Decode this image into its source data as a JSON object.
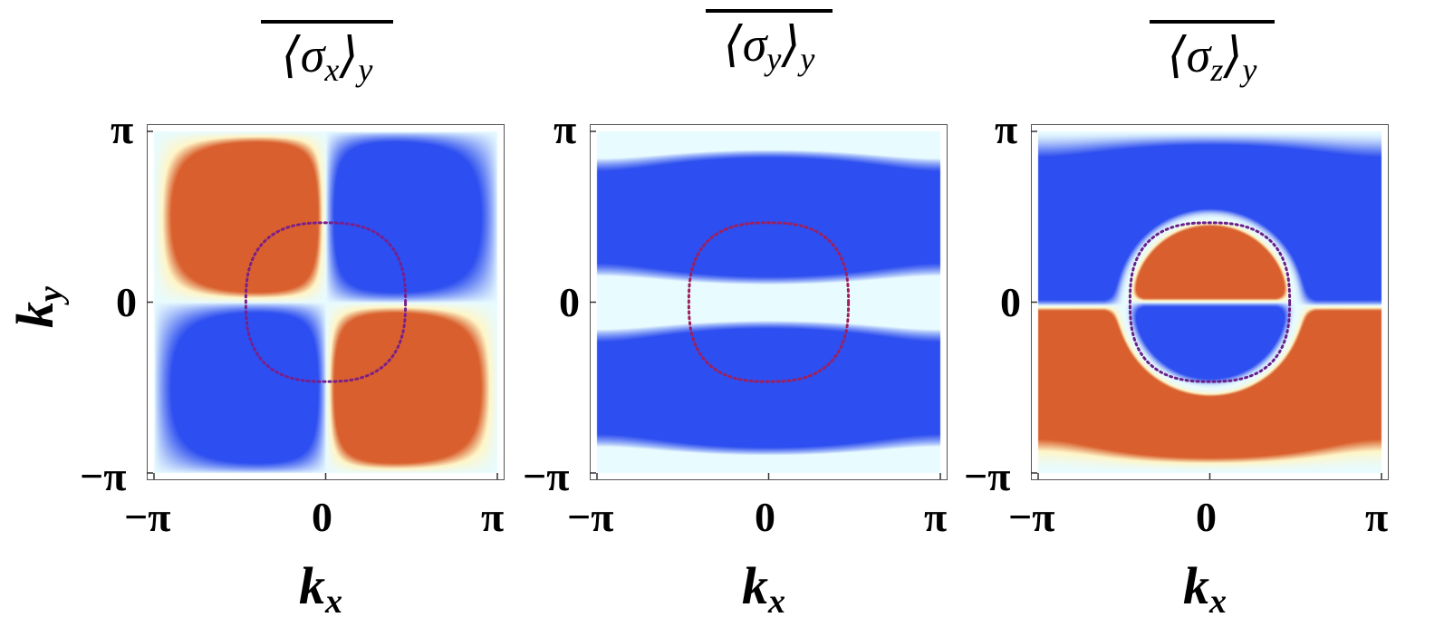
{
  "chart_data": [
    {
      "type": "heatmap",
      "title": "⟨σ_x⟩_y",
      "title_main": "⟨σ",
      "title_inner_sub": "x",
      "title_close": "⟩",
      "title_outer_sub": "y",
      "xlabel": "k_x",
      "ylabel": "k_y",
      "x_range": [
        -3.1416,
        3.1416
      ],
      "y_range": [
        -3.1416,
        3.1416
      ],
      "x_ticks": [
        "−π",
        "0",
        "π"
      ],
      "y_ticks": [
        "π",
        "0",
        "−π"
      ],
      "colormap": [
        "#2d4ef0",
        "#e8fbff",
        "#fff6c8",
        "#d9602e"
      ],
      "pattern": "quadrant (sin kx · sin ky), red in 2nd/4th quadrants, blue in 1st/3rd",
      "fermi_contour": {
        "style": "dotted",
        "color": "#7a1f8a",
        "radius_fraction_of_pi": 0.5
      }
    },
    {
      "type": "heatmap",
      "title": "⟨σ_y⟩_y",
      "title_main": "⟨σ",
      "title_inner_sub": "y",
      "title_close": "⟩",
      "title_outer_sub": "y",
      "xlabel": "k_x",
      "ylabel": "",
      "x_range": [
        -3.1416,
        3.1416
      ],
      "y_range": [
        -3.1416,
        3.1416
      ],
      "x_ticks": [
        "−π",
        "0",
        "π"
      ],
      "y_ticks": [
        "π",
        "0",
        "−π"
      ],
      "colormap": [
        "#2d4ef0",
        "#e8fbff",
        "#fff6c8",
        "#d9602e"
      ],
      "pattern": "blue bands above and below ky = 0, pale stripe at ky = 0",
      "fermi_contour": {
        "style": "dotted",
        "color": "#a01f5a",
        "radius_fraction_of_pi": 0.5
      }
    },
    {
      "type": "heatmap",
      "title": "⟨σ_z⟩_y",
      "title_main": "⟨σ",
      "title_inner_sub": "z",
      "title_close": "⟩",
      "title_outer_sub": "y",
      "xlabel": "k_x",
      "ylabel": "",
      "x_range": [
        -3.1416,
        3.1416
      ],
      "y_range": [
        -3.1416,
        3.1416
      ],
      "x_ticks": [
        "−π",
        "0",
        "π"
      ],
      "y_ticks": [
        "π",
        "0",
        "−π"
      ],
      "colormap": [
        "#2d4ef0",
        "#e8fbff",
        "#fff6c8",
        "#d9602e"
      ],
      "pattern": "blue upper half, red lower half, inverted inside the Fermi contour",
      "fermi_contour": {
        "style": "dotted",
        "color": "#6a1f8a",
        "radius_fraction_of_pi": 0.5
      }
    }
  ]
}
